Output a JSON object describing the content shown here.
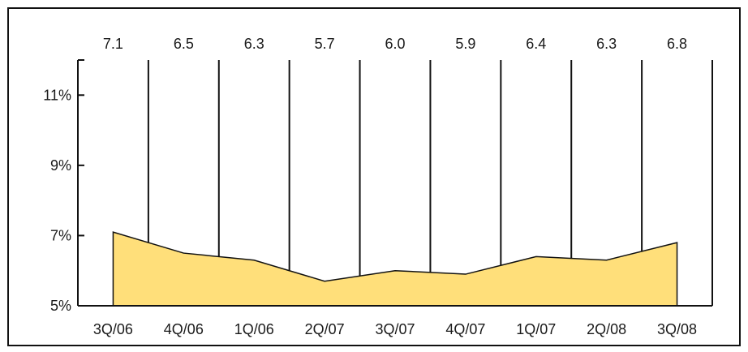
{
  "chart_data": {
    "type": "area",
    "title": "",
    "xlabel": "",
    "ylabel": "",
    "categories": [
      "3Q/06",
      "4Q/06",
      "1Q/06",
      "2Q/07",
      "3Q/07",
      "4Q/07",
      "1Q/07",
      "2Q/08",
      "3Q/08"
    ],
    "values": [
      7.1,
      6.5,
      6.3,
      5.7,
      6.0,
      5.9,
      6.4,
      6.3,
      6.8
    ],
    "value_labels": [
      "7.1",
      "6.5",
      "6.3",
      "5.7",
      "6.0",
      "5.9",
      "6.4",
      "6.3",
      "6.8"
    ],
    "ylim": [
      5,
      12
    ],
    "yticks": [
      5,
      7,
      9,
      11
    ],
    "ytick_labels": [
      "5%",
      "7%",
      "9%",
      "11%"
    ],
    "grid": "vertical separators between categories",
    "legend": "none",
    "colors": {
      "fill": "#ffdf7a",
      "stroke": "#111111",
      "frame": "#111111"
    }
  }
}
